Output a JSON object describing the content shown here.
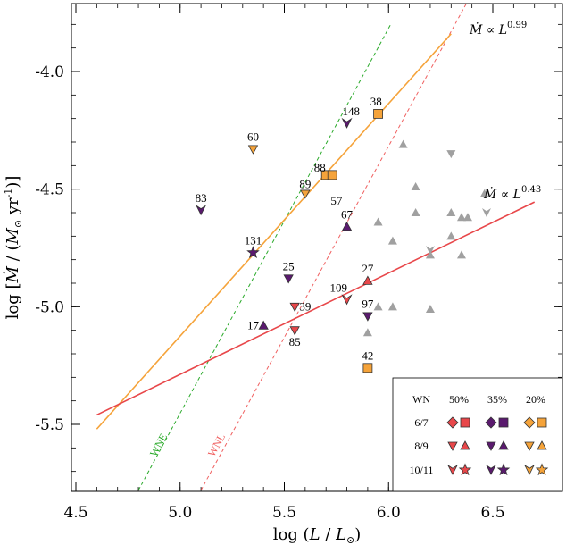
{
  "chart_data": {
    "type": "scatter",
    "xlabel_parts": [
      "log (",
      "L",
      " / ",
      "L",
      "⊙",
      ")"
    ],
    "ylabel_parts": [
      "log [",
      "Ṁ",
      " / (",
      "M",
      "⊙",
      " yr",
      "-1",
      ")]"
    ],
    "xlim": [
      4.5,
      6.85
    ],
    "ylim": [
      -5.8,
      -3.7
    ],
    "xticks": [
      4.5,
      5.0,
      5.5,
      6.0,
      6.5
    ],
    "xtick_labels": [
      "4.5",
      "5.0",
      "5.5",
      "6.0",
      "6.5"
    ],
    "yticks": [
      -5.5,
      -5.0,
      -4.5,
      -4.0
    ],
    "ytick_labels": [
      "-5.5",
      "-5.0",
      "-4.5",
      "-4.0"
    ],
    "colors": {
      "z50": "#e8474a",
      "z35": "#5a1a6e",
      "z20": "#f5a33a",
      "grey": "#a0a0a0",
      "wne_line": "#2aaa2a",
      "wnl_line": "#f06060",
      "fit_orange": "#f5a33a",
      "fit_red": "#e8474a"
    },
    "fits": [
      {
        "label": "Ṁ ∝ L",
        "exponent": "0.99",
        "color": "#f5a33a",
        "x": [
          4.6,
          6.3
        ],
        "y": [
          -5.52,
          -3.84
        ]
      },
      {
        "label": "Ṁ ∝ L",
        "exponent": "0.43",
        "color": "#e8474a",
        "x": [
          4.6,
          6.7
        ],
        "y": [
          -5.46,
          -4.555
        ]
      }
    ],
    "reference_lines": [
      {
        "label": "WNE",
        "color": "#2aaa2a",
        "x": [
          4.8,
          6.01
        ],
        "y": [
          -5.78,
          -3.8
        ]
      },
      {
        "label": "WNL",
        "color": "#f06060",
        "x": [
          5.1,
          6.38
        ],
        "y": [
          -5.78,
          -3.7
        ]
      }
    ],
    "labeled_points": [
      {
        "id": "38",
        "x": 5.95,
        "y": -4.18,
        "marker": "square",
        "color": "z20",
        "lx": 5.94,
        "ly": -4.13
      },
      {
        "id": "148",
        "x": 5.8,
        "y": -4.22,
        "marker": "tri_down_v",
        "color": "z35",
        "lx": 5.82,
        "ly": -4.17
      },
      {
        "id": "60",
        "x": 5.35,
        "y": -4.33,
        "marker": "tri_down",
        "color": "z20",
        "lx": 5.35,
        "ly": -4.28
      },
      {
        "id": "88",
        "x": 5.7,
        "y": -4.44,
        "marker": "square",
        "color": "z20",
        "lx": 5.67,
        "ly": -4.41
      },
      {
        "id": "57",
        "x": 5.73,
        "y": -4.44,
        "marker": "square",
        "color": "z20",
        "lx": 5.75,
        "ly": -4.55
      },
      {
        "id": "89",
        "x": 5.6,
        "y": -4.52,
        "marker": "tri_down",
        "color": "z20",
        "lx": 5.6,
        "ly": -4.48
      },
      {
        "id": "83",
        "x": 5.1,
        "y": -4.59,
        "marker": "tri_down_v",
        "color": "z35",
        "lx": 5.1,
        "ly": -4.54
      },
      {
        "id": "67",
        "x": 5.8,
        "y": -4.66,
        "marker": "tri_up",
        "color": "z35",
        "lx": 5.8,
        "ly": -4.61
      },
      {
        "id": "131",
        "x": 5.35,
        "y": -4.77,
        "marker": "star",
        "color": "z35",
        "lx": 5.35,
        "ly": -4.72
      },
      {
        "id": "25",
        "x": 5.52,
        "y": -4.88,
        "marker": "tri_down",
        "color": "z35",
        "lx": 5.52,
        "ly": -4.83
      },
      {
        "id": "27",
        "x": 5.9,
        "y": -4.89,
        "marker": "tri_up",
        "color": "z50",
        "lx": 5.9,
        "ly": -4.84
      },
      {
        "id": "109",
        "x": 5.8,
        "y": -4.97,
        "marker": "tri_down_v",
        "color": "z50",
        "lx": 5.76,
        "ly": -4.92
      },
      {
        "id": "39",
        "x": 5.55,
        "y": -5.0,
        "marker": "tri_down",
        "color": "z50",
        "lx": 5.6,
        "ly": -5.0
      },
      {
        "id": "97",
        "x": 5.9,
        "y": -5.04,
        "marker": "tri_down",
        "color": "z35",
        "lx": 5.9,
        "ly": -4.99
      },
      {
        "id": "17",
        "x": 5.4,
        "y": -5.08,
        "marker": "tri_up",
        "color": "z35",
        "lx": 5.35,
        "ly": -5.08
      },
      {
        "id": "85",
        "x": 5.55,
        "y": -5.1,
        "marker": "tri_down",
        "color": "z50",
        "lx": 5.55,
        "ly": -5.15
      },
      {
        "id": "42",
        "x": 5.9,
        "y": -5.26,
        "marker": "square",
        "color": "z20",
        "lx": 5.9,
        "ly": -5.21
      }
    ],
    "grey_points": [
      {
        "x": 6.07,
        "y": -4.31,
        "marker": "tri_up"
      },
      {
        "x": 6.3,
        "y": -4.35,
        "marker": "tri_down"
      },
      {
        "x": 6.13,
        "y": -4.49,
        "marker": "tri_up"
      },
      {
        "x": 6.46,
        "y": -4.52,
        "marker": "tri_up"
      },
      {
        "x": 6.3,
        "y": -4.6,
        "marker": "tri_up"
      },
      {
        "x": 6.35,
        "y": -4.62,
        "marker": "tri_up"
      },
      {
        "x": 6.38,
        "y": -4.62,
        "marker": "tri_up"
      },
      {
        "x": 6.47,
        "y": -4.6,
        "marker": "tri_down_v"
      },
      {
        "x": 6.13,
        "y": -4.6,
        "marker": "tri_up"
      },
      {
        "x": 5.95,
        "y": -4.64,
        "marker": "tri_up"
      },
      {
        "x": 6.02,
        "y": -4.72,
        "marker": "tri_up"
      },
      {
        "x": 6.3,
        "y": -4.7,
        "marker": "tri_up"
      },
      {
        "x": 6.2,
        "y": -4.76,
        "marker": "tri_down_v"
      },
      {
        "x": 6.2,
        "y": -4.78,
        "marker": "tri_up"
      },
      {
        "x": 6.35,
        "y": -4.78,
        "marker": "tri_up"
      },
      {
        "x": 5.95,
        "y": -5.0,
        "marker": "tri_up"
      },
      {
        "x": 6.02,
        "y": -5.0,
        "marker": "tri_up"
      },
      {
        "x": 6.2,
        "y": -5.01,
        "marker": "tri_up"
      },
      {
        "x": 5.9,
        "y": -5.11,
        "marker": "tri_up"
      }
    ],
    "legend": {
      "header": [
        "WN",
        "50%",
        "35%",
        "20%"
      ],
      "rows": [
        {
          "label": "6/7",
          "markers": [
            "diamond",
            "square"
          ]
        },
        {
          "label": "8/9",
          "markers": [
            "tri_down",
            "tri_up"
          ]
        },
        {
          "label": "10/11",
          "markers": [
            "tri_down_v",
            "star"
          ]
        }
      ],
      "column_colors": [
        "z50",
        "z35",
        "z20"
      ],
      "placement": "bottom-right"
    }
  }
}
